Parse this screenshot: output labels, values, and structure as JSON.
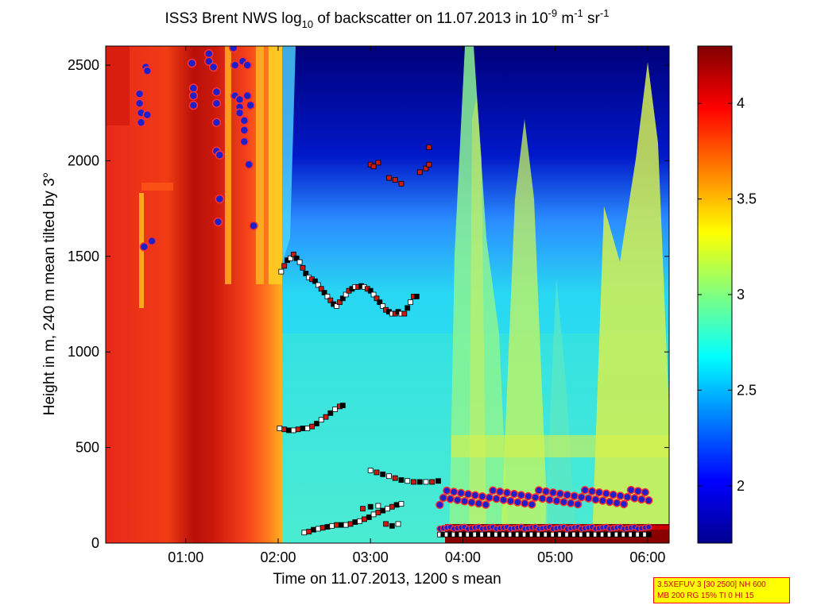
{
  "chart_data": {
    "type": "heatmap",
    "title": {
      "pre": "ISS3 Brent NWS log",
      "sub": "10",
      "mid": " of backscatter on 11.07.2013 in 10",
      "sup1": "-9",
      "mid2": " m",
      "sup2": "-1",
      "mid3": " sr",
      "sup3": "-1"
    },
    "xlabel": "Time on 11.07.2013, 1200 s mean",
    "ylabel": "Height in m, 240 m mean tilted by 3°",
    "xlim": [
      "00:08",
      "06:14"
    ],
    "ylim": [
      0,
      2600
    ],
    "x_ticks": [
      "01:00",
      "02:00",
      "03:00",
      "04:00",
      "05:00",
      "06:00"
    ],
    "y_ticks": [
      0,
      500,
      1000,
      1500,
      2000,
      2500
    ],
    "colorbar": {
      "range": [
        1.7,
        4.3
      ],
      "ticks": [
        2,
        2.5,
        3,
        3.5,
        4
      ],
      "tick_labels": [
        "2",
        "2.5",
        "3",
        "3.5",
        "4"
      ]
    },
    "series": [
      {
        "marker": "dot-blue-red-edge",
        "points": [
          [
            "00:30",
            2350
          ],
          [
            "00:30",
            2300
          ],
          [
            "00:31",
            2250
          ],
          [
            "00:31",
            2200
          ],
          [
            "00:34",
            2490
          ],
          [
            "00:35",
            2470
          ],
          [
            "00:33",
            1550
          ],
          [
            "00:38",
            1580
          ],
          [
            "00:35",
            2240
          ],
          [
            "01:04",
            2510
          ],
          [
            "01:05",
            2380
          ],
          [
            "01:05",
            2340
          ],
          [
            "01:05",
            2290
          ],
          [
            "01:15",
            2560
          ],
          [
            "01:15",
            2520
          ],
          [
            "01:18",
            2490
          ],
          [
            "01:20",
            2360
          ],
          [
            "01:20",
            2300
          ],
          [
            "01:20",
            2200
          ],
          [
            "01:20",
            2050
          ],
          [
            "01:22",
            2030
          ],
          [
            "01:22",
            1800
          ],
          [
            "01:21",
            1680
          ],
          [
            "01:31",
            2590
          ],
          [
            "01:32",
            2500
          ],
          [
            "01:32",
            2340
          ],
          [
            "01:35",
            2320
          ],
          [
            "01:35",
            2280
          ],
          [
            "01:35",
            2250
          ],
          [
            "01:38",
            2210
          ],
          [
            "01:38",
            2160
          ],
          [
            "01:38",
            2100
          ],
          [
            "01:37",
            2520
          ],
          [
            "01:40",
            2500
          ],
          [
            "01:40",
            2340
          ],
          [
            "01:42",
            2290
          ],
          [
            "01:41",
            1980
          ],
          [
            "01:44",
            1660
          ]
        ]
      },
      {
        "marker": "square-red",
        "points": [
          [
            "03:00",
            1980
          ],
          [
            "03:02",
            1970
          ],
          [
            "03:05",
            1990
          ],
          [
            "03:12",
            1910
          ],
          [
            "03:16",
            1900
          ],
          [
            "03:20",
            1880
          ],
          [
            "03:32",
            1940
          ],
          [
            "03:36",
            1960
          ],
          [
            "03:38",
            1980
          ],
          [
            "03:38",
            2070
          ]
        ]
      },
      {
        "marker": "square-mixed-layer-1450",
        "points": [
          [
            "02:02",
            1420
          ],
          [
            "02:04",
            1450
          ],
          [
            "02:06",
            1480
          ],
          [
            "02:08",
            1490
          ],
          [
            "02:10",
            1510
          ],
          [
            "02:12",
            1490
          ],
          [
            "02:14",
            1470
          ],
          [
            "02:16",
            1440
          ],
          [
            "02:18",
            1410
          ],
          [
            "02:20",
            1390
          ],
          [
            "02:22",
            1380
          ],
          [
            "02:24",
            1370
          ],
          [
            "02:26",
            1350
          ],
          [
            "02:28",
            1330
          ],
          [
            "02:30",
            1310
          ],
          [
            "02:32",
            1290
          ],
          [
            "02:34",
            1270
          ],
          [
            "02:36",
            1250
          ],
          [
            "02:38",
            1240
          ],
          [
            "02:40",
            1260
          ],
          [
            "02:42",
            1280
          ],
          [
            "02:44",
            1300
          ],
          [
            "02:46",
            1320
          ],
          [
            "02:48",
            1330
          ],
          [
            "02:50",
            1340
          ],
          [
            "02:52",
            1340
          ],
          [
            "02:54",
            1345
          ],
          [
            "02:56",
            1340
          ],
          [
            "02:58",
            1330
          ],
          [
            "03:00",
            1320
          ],
          [
            "03:02",
            1300
          ],
          [
            "03:04",
            1280
          ],
          [
            "03:06",
            1260
          ],
          [
            "03:08",
            1240
          ],
          [
            "03:10",
            1220
          ],
          [
            "03:12",
            1210
          ],
          [
            "03:14",
            1200
          ],
          [
            "03:16",
            1200
          ],
          [
            "03:18",
            1210
          ],
          [
            "03:20",
            1200
          ],
          [
            "03:22",
            1200
          ],
          [
            "03:24",
            1230
          ],
          [
            "03:26",
            1260
          ],
          [
            "03:28",
            1290
          ],
          [
            "03:30",
            1290
          ]
        ]
      },
      {
        "marker": "square-layer-600",
        "points": [
          [
            "02:01",
            600
          ],
          [
            "02:04",
            595
          ],
          [
            "02:07",
            590
          ],
          [
            "02:10",
            590
          ],
          [
            "02:13",
            595
          ],
          [
            "02:16",
            600
          ],
          [
            "02:19",
            600
          ],
          [
            "02:22",
            610
          ],
          [
            "02:25",
            625
          ],
          [
            "02:28",
            645
          ],
          [
            "02:31",
            660
          ],
          [
            "02:34",
            680
          ],
          [
            "02:37",
            700
          ],
          [
            "02:40",
            715
          ],
          [
            "02:42",
            720
          ]
        ]
      },
      {
        "marker": "square-layer-380",
        "points": [
          [
            "03:00",
            380
          ],
          [
            "03:04",
            370
          ],
          [
            "03:08",
            360
          ],
          [
            "03:12",
            350
          ],
          [
            "03:16",
            340
          ],
          [
            "03:20",
            330
          ],
          [
            "03:24",
            325
          ],
          [
            "03:28",
            320
          ],
          [
            "03:32",
            320
          ],
          [
            "03:36",
            320
          ],
          [
            "03:40",
            320
          ],
          [
            "03:44",
            325
          ]
        ]
      },
      {
        "marker": "square-layer-low",
        "points": [
          [
            "02:17",
            55
          ],
          [
            "02:20",
            60
          ],
          [
            "02:23",
            70
          ],
          [
            "02:26",
            75
          ],
          [
            "02:29",
            80
          ],
          [
            "02:32",
            85
          ],
          [
            "02:35",
            90
          ],
          [
            "02:38",
            95
          ],
          [
            "02:41",
            95
          ],
          [
            "02:44",
            95
          ],
          [
            "02:47",
            100
          ],
          [
            "02:50",
            110
          ],
          [
            "02:53",
            115
          ],
          [
            "02:56",
            125
          ],
          [
            "02:59",
            135
          ],
          [
            "03:02",
            150
          ],
          [
            "03:05",
            160
          ],
          [
            "03:08",
            170
          ],
          [
            "03:11",
            180
          ],
          [
            "03:14",
            190
          ],
          [
            "03:17",
            200
          ],
          [
            "03:20",
            205
          ],
          [
            "02:55",
            180
          ],
          [
            "03:00",
            190
          ],
          [
            "03:05",
            195
          ],
          [
            "03:10",
            100
          ],
          [
            "03:14",
            90
          ],
          [
            "03:18",
            100
          ]
        ]
      }
    ]
  },
  "info_box": {
    "line1": "3.5XEFUV 3 [30 2500] NH 600",
    "line2": "MB 200 RG 15% TI 0 HI 15"
  }
}
